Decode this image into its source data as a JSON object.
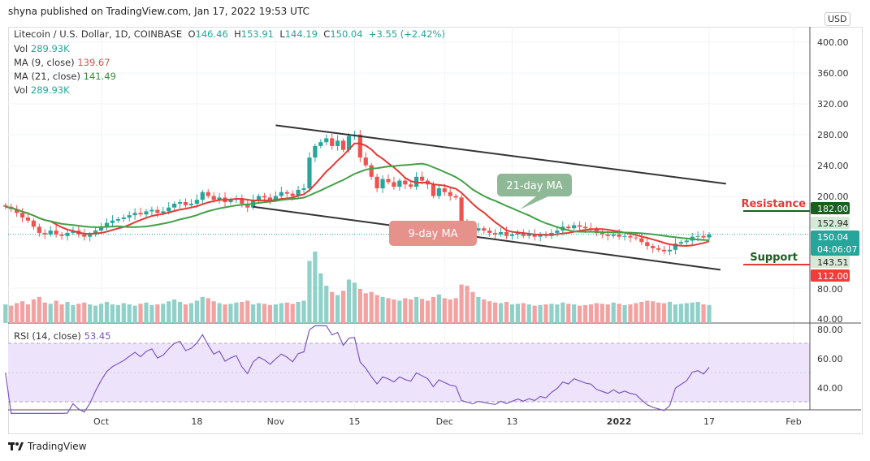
{
  "header": {
    "published": "shyna published on TradingView.com, Jan 17, 2022 19:53 UTC"
  },
  "legend": {
    "symbol": "Litecoin / U.S. Dollar, 1D, COINBASE",
    "o_label": "O",
    "o": "146.46",
    "h_label": "H",
    "h": "153.91",
    "l_label": "L",
    "l": "144.19",
    "c_label": "C",
    "c": "150.04",
    "change": "+3.55 (+2.42%)",
    "vol_label": "Vol",
    "vol": "289.93K",
    "ma9_label": "MA (9, close)",
    "ma9": "139.67",
    "ma21_label": "MA (21, close)",
    "ma21": "141.49",
    "vol2_label": "Vol",
    "vol2": "289.93K",
    "rsi_label": "RSI (14, close)",
    "rsi": "53.45"
  },
  "currency": "USD",
  "brand": "TradingView",
  "colors": {
    "up": "#26a69a",
    "down": "#ef5350",
    "ma9": "#e53935",
    "ma21": "#43a047",
    "rsi": "#7e57c2",
    "resistance": "#1b5e20",
    "support": "#e53935"
  },
  "chart_data": {
    "type": "candlestick",
    "start_date": "2021-09-14",
    "end_date": "2022-01-17",
    "closes": [
      186,
      183,
      178,
      172,
      168,
      160,
      152,
      150,
      155,
      150,
      148,
      152,
      155,
      150,
      147,
      150,
      155,
      160,
      165,
      168,
      170,
      172,
      175,
      178,
      176,
      180,
      182,
      178,
      180,
      185,
      190,
      192,
      188,
      190,
      195,
      205,
      200,
      195,
      198,
      192,
      195,
      197,
      190,
      185,
      195,
      200,
      198,
      195,
      200,
      205,
      203,
      200,
      208,
      210,
      250,
      265,
      270,
      275,
      265,
      272,
      260,
      278,
      280,
      250,
      240,
      225,
      210,
      222,
      218,
      212,
      220,
      215,
      212,
      225,
      220,
      215,
      200,
      210,
      205,
      200,
      198,
      165,
      160,
      155,
      158,
      155,
      152,
      150,
      153,
      148,
      150,
      152,
      148,
      150,
      147,
      150,
      148,
      152,
      155,
      160,
      158,
      162,
      160,
      158,
      157,
      152,
      150,
      148,
      150,
      147,
      148,
      146,
      145,
      140,
      135,
      132,
      130,
      128,
      130,
      138,
      140,
      142,
      147,
      148,
      146,
      150
    ],
    "volumes": [
      300,
      280,
      320,
      350,
      300,
      380,
      420,
      330,
      310,
      360,
      300,
      340,
      290,
      310,
      330,
      300,
      280,
      310,
      340,
      300,
      290,
      320,
      300,
      280,
      310,
      330,
      290,
      300,
      310,
      350,
      380,
      340,
      300,
      320,
      360,
      420,
      400,
      350,
      320,
      300,
      310,
      330,
      340,
      360,
      300,
      320,
      310,
      290,
      300,
      320,
      330,
      310,
      340,
      360,
      1000,
      1150,
      800,
      600,
      500,
      450,
      520,
      700,
      650,
      550,
      480,
      500,
      450,
      420,
      400,
      380,
      360,
      400,
      380,
      420,
      390,
      360,
      420,
      460,
      400,
      380,
      400,
      620,
      600,
      500,
      420,
      380,
      350,
      330,
      320,
      340,
      300,
      310,
      320,
      300,
      280,
      290,
      300,
      310,
      300,
      330,
      310,
      300,
      280,
      290,
      300,
      320,
      310,
      300,
      330,
      310,
      290,
      300,
      320,
      340,
      360,
      350,
      330,
      320,
      340,
      300,
      310,
      320,
      330,
      340,
      300,
      290
    ],
    "price_axis": {
      "ticks": [
        "400.00",
        "360.00",
        "320.00",
        "280.00",
        "240.00",
        "200.00",
        "80.00",
        "40.00"
      ],
      "range": [
        40,
        400
      ]
    },
    "rsi_axis": {
      "ticks": [
        "80.00",
        "60.00",
        "40.00"
      ],
      "range": [
        20,
        85
      ],
      "bands": [
        30,
        70
      ]
    },
    "price_labels": [
      {
        "text": "182.00",
        "kind": "resistance"
      },
      {
        "text": "152.94",
        "kind": "high"
      },
      {
        "text": "150.04",
        "sub": "04:06:07",
        "kind": "last"
      },
      {
        "text": "143.51",
        "kind": "low"
      },
      {
        "text": "112.00",
        "kind": "support"
      }
    ],
    "x_ticks": [
      {
        "label": "Oct",
        "day": 17
      },
      {
        "label": "18",
        "day": 34
      },
      {
        "label": "Nov",
        "day": 48
      },
      {
        "label": "15",
        "day": 62
      },
      {
        "label": "Dec",
        "day": 78
      },
      {
        "label": "13",
        "day": 90
      },
      {
        "label": "2022",
        "day": 109
      },
      {
        "label": "17",
        "day": 125
      },
      {
        "label": "Feb",
        "day": 140
      }
    ],
    "trendlines": [
      {
        "from": [
          48,
          292
        ],
        "to": [
          128,
          216
        ]
      },
      {
        "from": [
          44,
          186
        ],
        "to": [
          127,
          104
        ]
      }
    ],
    "annotations": {
      "ma21": "21-day MA",
      "ma9": "9-day MA",
      "resistance": "Resistance",
      "support": "Support"
    }
  }
}
